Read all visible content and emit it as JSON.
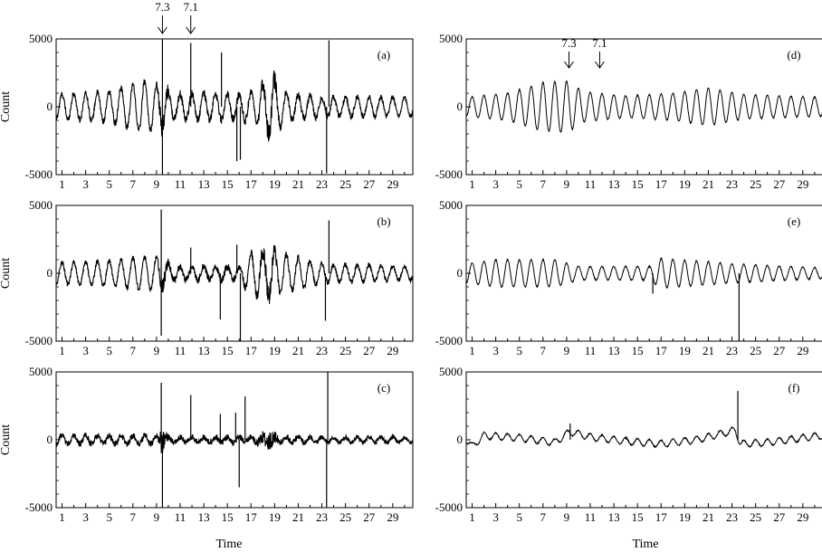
{
  "figure": {
    "ylabel": "Count",
    "xlabel": "Time"
  },
  "chart_data": [
    {
      "panel_label": "(a)",
      "type": "line",
      "xlim": [
        0.5,
        30.7
      ],
      "ylim": [
        -5000,
        5000
      ],
      "xticks": [
        1,
        3,
        5,
        7,
        9,
        11,
        13,
        15,
        17,
        19,
        21,
        23,
        25,
        27,
        29
      ],
      "xtick_labels_shown": [
        1,
        3,
        5,
        7,
        9,
        11,
        13,
        15,
        17,
        19,
        21,
        23,
        25,
        27,
        29
      ],
      "yticks": [
        -5000,
        0,
        5000
      ],
      "annotations": [
        {
          "text": "7.3",
          "x": 9.5
        },
        {
          "text": "7.1",
          "x": 11.9
        }
      ],
      "series_note": "oscillating signal ~1 cycle per time unit with noisy bursts",
      "amplitude_profile": [
        [
          0.5,
          900
        ],
        [
          5,
          1100
        ],
        [
          8,
          1900
        ],
        [
          9.4,
          1500
        ],
        [
          10.5,
          900
        ],
        [
          13,
          1000
        ],
        [
          16,
          900
        ],
        [
          17.5,
          1300
        ],
        [
          18.7,
          2300
        ],
        [
          20,
          1000
        ],
        [
          23,
          700
        ],
        [
          30.5,
          700
        ]
      ],
      "noise_profile": [
        [
          0.5,
          200
        ],
        [
          9,
          250
        ],
        [
          9.5,
          900
        ],
        [
          10.2,
          300
        ],
        [
          17.5,
          300
        ],
        [
          18.7,
          900
        ],
        [
          19.5,
          300
        ],
        [
          30.5,
          150
        ]
      ],
      "spikes": [
        [
          9.5,
          5000
        ],
        [
          9.5,
          -5000
        ],
        [
          11.9,
          4700
        ],
        [
          14.5,
          4000
        ],
        [
          15.8,
          -4000
        ],
        [
          16.1,
          -3900
        ],
        [
          23.4,
          -4900
        ],
        [
          23.6,
          4900
        ]
      ]
    },
    {
      "panel_label": "(b)",
      "type": "line",
      "xlim": [
        0.5,
        30.7
      ],
      "ylim": [
        -5000,
        5000
      ],
      "xticks": [
        1,
        3,
        5,
        7,
        9,
        11,
        13,
        15,
        17,
        19,
        21,
        23,
        25,
        27,
        29
      ],
      "xtick_labels_shown": [
        1,
        3,
        5,
        7,
        9,
        11,
        13,
        15,
        17,
        19,
        21,
        23,
        25,
        27,
        29
      ],
      "yticks": [
        -5000,
        0,
        5000
      ],
      "annotations": [],
      "series_note": "oscillating signal with bursts",
      "amplitude_profile": [
        [
          0.5,
          800
        ],
        [
          5,
          900
        ],
        [
          8,
          1200
        ],
        [
          9.4,
          1100
        ],
        [
          10.5,
          500
        ],
        [
          16,
          500
        ],
        [
          17,
          1600
        ],
        [
          19,
          1600
        ],
        [
          23,
          700
        ],
        [
          30.5,
          500
        ]
      ],
      "noise_profile": [
        [
          0.5,
          150
        ],
        [
          9,
          200
        ],
        [
          9.5,
          700
        ],
        [
          10.2,
          250
        ],
        [
          17,
          300
        ],
        [
          18.6,
          800
        ],
        [
          19.5,
          250
        ],
        [
          30.5,
          150
        ]
      ],
      "spikes": [
        [
          9.4,
          4700
        ],
        [
          9.4,
          -4600
        ],
        [
          11.9,
          1900
        ],
        [
          14.4,
          -3400
        ],
        [
          15.8,
          2100
        ],
        [
          16.1,
          -5000
        ],
        [
          23.3,
          -3500
        ],
        [
          23.6,
          3900
        ]
      ]
    },
    {
      "panel_label": "(c)",
      "type": "line",
      "xlim": [
        0.5,
        30.7
      ],
      "ylim": [
        -5000,
        5000
      ],
      "xticks": [
        1,
        3,
        5,
        7,
        9,
        11,
        13,
        15,
        17,
        19,
        21,
        23,
        25,
        27,
        29
      ],
      "xtick_labels_shown": [
        1,
        3,
        5,
        7,
        9,
        11,
        13,
        15,
        17,
        19,
        21,
        23,
        25,
        27,
        29
      ],
      "yticks": [
        -5000,
        0,
        5000
      ],
      "annotations": [],
      "series_note": "low-amplitude noisy residual",
      "amplitude_profile": [
        [
          0.5,
          300
        ],
        [
          9,
          300
        ],
        [
          10,
          200
        ],
        [
          30.5,
          200
        ]
      ],
      "noise_profile": [
        [
          0.5,
          200
        ],
        [
          9,
          250
        ],
        [
          9.5,
          900
        ],
        [
          10.2,
          200
        ],
        [
          17.5,
          250
        ],
        [
          18.6,
          700
        ],
        [
          19.5,
          200
        ],
        [
          30.5,
          150
        ]
      ],
      "spikes": [
        [
          9.4,
          4200
        ],
        [
          9.5,
          -5000
        ],
        [
          11.9,
          3300
        ],
        [
          14.4,
          1900
        ],
        [
          15.7,
          2000
        ],
        [
          16.0,
          -3500
        ],
        [
          16.5,
          3200
        ],
        [
          23.4,
          -5000
        ],
        [
          23.5,
          5000
        ]
      ]
    },
    {
      "panel_label": "(d)",
      "type": "line",
      "xlim": [
        0.5,
        30.7
      ],
      "ylim": [
        -5000,
        5000
      ],
      "xticks": [
        1,
        3,
        5,
        7,
        9,
        11,
        13,
        15,
        17,
        19,
        21,
        23,
        25,
        27,
        29
      ],
      "xtick_labels_shown": [
        1,
        3,
        5,
        7,
        9,
        11,
        13,
        15,
        17,
        19,
        21,
        23,
        25,
        27,
        29
      ],
      "yticks": [
        -5000,
        0,
        5000
      ],
      "annotations": [
        {
          "text": "7.3",
          "x": 9.2
        },
        {
          "text": "7.1",
          "x": 11.8
        }
      ],
      "series_note": "smooth periodic signal ~1 cycle per time unit",
      "amplitude_profile": [
        [
          0.5,
          700
        ],
        [
          4,
          1000
        ],
        [
          7,
          1800
        ],
        [
          9,
          1900
        ],
        [
          10.5,
          1100
        ],
        [
          14,
          800
        ],
        [
          18,
          1000
        ],
        [
          21,
          1400
        ],
        [
          24,
          900
        ],
        [
          30.5,
          700
        ]
      ],
      "noise_profile": [
        [
          0.5,
          40
        ],
        [
          30.5,
          40
        ]
      ],
      "spikes": []
    },
    {
      "panel_label": "(e)",
      "type": "line",
      "xlim": [
        0.5,
        30.7
      ],
      "ylim": [
        -5000,
        5000
      ],
      "xticks": [
        1,
        3,
        5,
        7,
        9,
        11,
        13,
        15,
        17,
        19,
        21,
        23,
        25,
        27,
        29
      ],
      "xtick_labels_shown": [
        1,
        3,
        5,
        7,
        9,
        11,
        13,
        15,
        17,
        19,
        21,
        23,
        25,
        27,
        29
      ],
      "yticks": [
        -5000,
        0,
        5000
      ],
      "annotations": [],
      "series_note": "smooth periodic signal with step near 17",
      "amplitude_profile": [
        [
          0.5,
          700
        ],
        [
          3,
          1000
        ],
        [
          8,
          1000
        ],
        [
          10,
          500
        ],
        [
          16,
          500
        ],
        [
          17,
          1100
        ],
        [
          23,
          700
        ],
        [
          30.5,
          400
        ]
      ],
      "noise_profile": [
        [
          0.5,
          40
        ],
        [
          30.5,
          40
        ]
      ],
      "spikes": [
        [
          16.3,
          -1500
        ],
        [
          23.6,
          -5000
        ]
      ]
    },
    {
      "panel_label": "(f)",
      "type": "line",
      "xlim": [
        0.5,
        30.7
      ],
      "ylim": [
        -5000,
        5000
      ],
      "xticks": [
        1,
        3,
        5,
        7,
        9,
        11,
        13,
        15,
        17,
        19,
        21,
        23,
        25,
        27,
        29
      ],
      "xtick_labels_shown": [
        1,
        3,
        5,
        7,
        9,
        11,
        13,
        15,
        17,
        19,
        21,
        23,
        25,
        27,
        29
      ],
      "yticks": [
        -5000,
        0,
        5000
      ],
      "annotations": [],
      "series_note": "low-frequency drift with small ripple",
      "amplitude_profile": [
        [
          0.5,
          250
        ],
        [
          30.5,
          250
        ]
      ],
      "noise_profile": [
        [
          0.5,
          40
        ],
        [
          30.5,
          40
        ]
      ],
      "baseline_profile": [
        [
          0.5,
          0
        ],
        [
          1,
          -500
        ],
        [
          2,
          300
        ],
        [
          5,
          150
        ],
        [
          8,
          -200
        ],
        [
          9.3,
          600
        ],
        [
          11,
          200
        ],
        [
          14,
          -100
        ],
        [
          17,
          -300
        ],
        [
          20,
          0
        ],
        [
          23.3,
          700
        ],
        [
          23.7,
          -300
        ],
        [
          26,
          -200
        ],
        [
          30.5,
          300
        ]
      ],
      "spikes": [
        [
          9.3,
          1200
        ],
        [
          23.5,
          3600
        ]
      ]
    }
  ]
}
